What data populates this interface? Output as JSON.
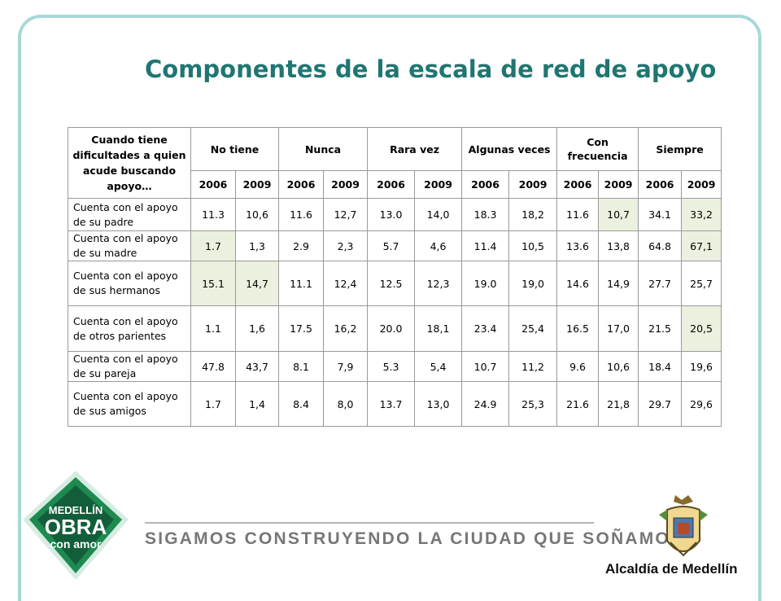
{
  "title": "Componentes de la escala de red de apoyo",
  "table": {
    "corner_header": "Cuando tiene dificultades a quien acude buscando apoyo…",
    "groups": [
      "No tiene",
      "Nunca",
      "Rara vez",
      "Algunas veces",
      "Con frecuencia",
      "Siempre"
    ],
    "years": [
      "2006",
      "2009"
    ],
    "rows": [
      {
        "label": "Cuenta con el apoyo de su padre",
        "values": [
          "11.3",
          "10,6",
          "11.6",
          "12,7",
          "13.0",
          "14,0",
          "18.3",
          "18,2",
          "11.6",
          "10,7",
          "34.1",
          "33,2"
        ]
      },
      {
        "label": "Cuenta con el apoyo de su madre",
        "values": [
          "1.7",
          "1,3",
          "2.9",
          "2,3",
          "5.7",
          "4,6",
          "11.4",
          "10,5",
          "13.6",
          "13,8",
          "64.8",
          "67,1"
        ]
      },
      {
        "label": "Cuenta con el apoyo de sus hermanos",
        "values": [
          "15.1",
          "14,7",
          "11.1",
          "12,4",
          "12.5",
          "12,3",
          "19.0",
          "19,0",
          "14.6",
          "14,9",
          "27.7",
          "25,7"
        ]
      },
      {
        "label": "Cuenta con el apoyo de otros parientes",
        "values": [
          "1.1",
          "1,6",
          "17.5",
          "16,2",
          "20.0",
          "18,1",
          "23.4",
          "25,4",
          "16.5",
          "17,0",
          "21.5",
          "20,5"
        ]
      },
      {
        "label": "Cuenta con el apoyo de su pareja",
        "values": [
          "47.8",
          "43,7",
          "8.1",
          "7,9",
          "5.3",
          "5,4",
          "10.7",
          "11,2",
          "9.6",
          "10,6",
          "18.4",
          "19,6"
        ]
      },
      {
        "label": "Cuenta con el apoyo de sus amigos",
        "values": [
          "1.7",
          "1,4",
          "8.4",
          "8,0",
          "13.7",
          "13,0",
          "24.9",
          "25,3",
          "21.6",
          "21,8",
          "29.7",
          "29,6"
        ]
      }
    ],
    "highlight_cells": [
      [
        0,
        9
      ],
      [
        0,
        11
      ],
      [
        1,
        0
      ],
      [
        1,
        11
      ],
      [
        2,
        0
      ],
      [
        2,
        1
      ],
      [
        3,
        11
      ]
    ],
    "highlight_color": "#ebf1de"
  },
  "colors": {
    "title": "#1f7672",
    "frame": "#a6d9d8",
    "logo_green": "#1e8a50",
    "logo_dark": "#135e3a"
  },
  "footer": {
    "slogan": "SIGAMOS CONSTRUYENDO LA CIUDAD QUE SOÑAMOS",
    "logo_left": {
      "line1": "MEDELLÍN",
      "line2": "OBRA",
      "line3": "con amor"
    },
    "logo_right_text": "Alcaldía de Medellín"
  }
}
